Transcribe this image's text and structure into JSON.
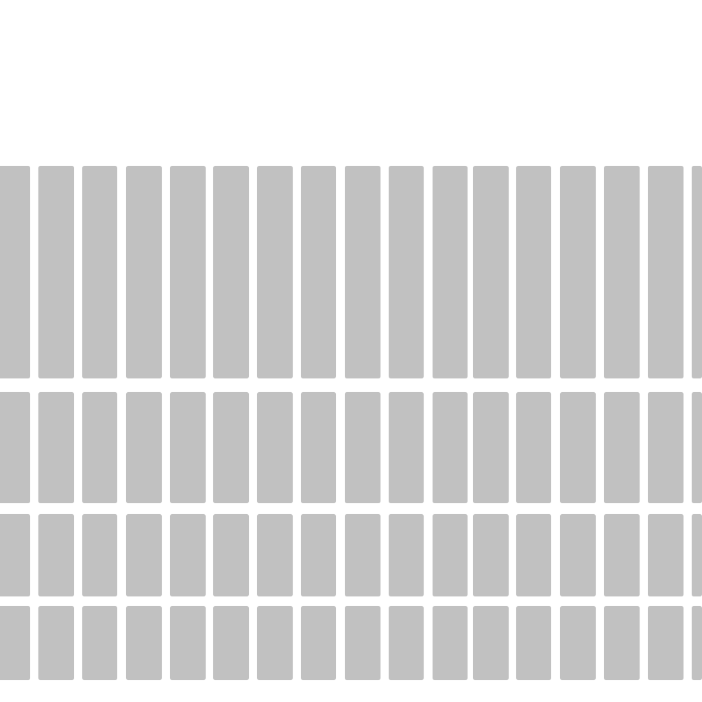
{
  "colors": {
    "background": "#ffffff",
    "tile": "#c1c1c1"
  },
  "grid": {
    "row_count": 4,
    "column_count": 17
  }
}
